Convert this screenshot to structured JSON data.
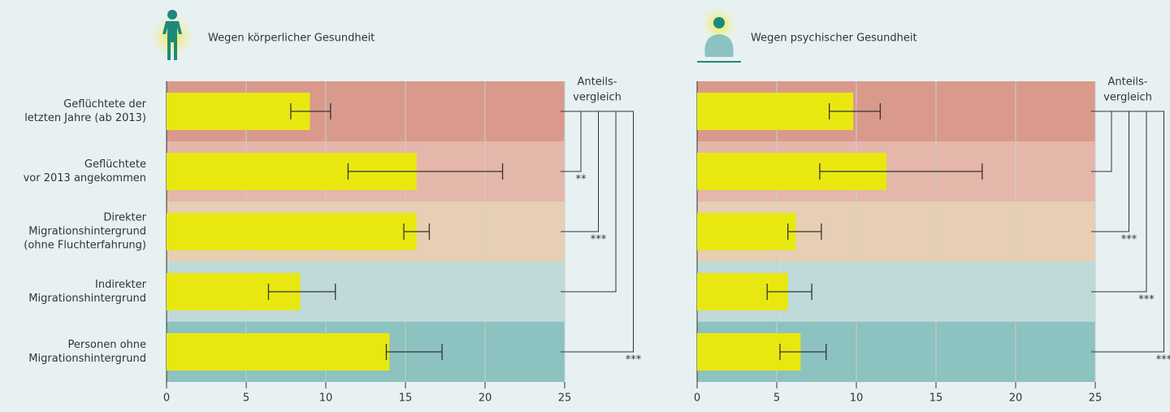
{
  "chart_data": [
    {
      "type": "bar",
      "title": "Wegen körperlicher Gesundheit",
      "categories": [
        [
          "Geflüchtete der",
          "letzten Jahre (ab 2013)"
        ],
        [
          "Geflüchtete",
          "vor 2013 angekommen"
        ],
        [
          "Direkter",
          "Migrationshintergrund",
          "(ohne Fluchterfahrung)"
        ],
        [
          "Indirekter",
          "Migrationshintergrund"
        ],
        [
          "Personen ohne",
          "Migrationshintergrund"
        ]
      ],
      "values": [
        9.0,
        15.7,
        15.7,
        8.4,
        14.0
      ],
      "error_low": [
        7.8,
        11.4,
        14.9,
        6.4,
        13.8
      ],
      "error_high": [
        10.3,
        21.1,
        16.5,
        10.6,
        17.3
      ],
      "color": "#e8e810",
      "row_colors": [
        "#d99a8c",
        "#e5b6aa",
        "#e6cfb4",
        "#bfdad9",
        "#8cc2bf"
      ],
      "xlim": [
        0,
        25
      ],
      "xticks": [
        0,
        5,
        10,
        15,
        20,
        25
      ],
      "grid": true,
      "annotation": [
        "Anteils-",
        "vergleich"
      ],
      "significance": [
        "**",
        "***",
        null,
        "***"
      ]
    },
    {
      "type": "bar",
      "title": "Wegen psychischer Gesundheit",
      "values": [
        9.8,
        11.9,
        6.2,
        5.7,
        6.5
      ],
      "error_low": [
        8.3,
        7.7,
        5.7,
        4.4,
        5.2
      ],
      "error_high": [
        11.5,
        17.9,
        7.8,
        7.2,
        8.1
      ],
      "color": "#e8e810",
      "row_colors": [
        "#d99a8c",
        "#e5b6aa",
        "#e6cfb4",
        "#bfdad9",
        "#8cc2bf"
      ],
      "xlim": [
        0,
        25
      ],
      "xticks": [
        0,
        5,
        10,
        15,
        20,
        25
      ],
      "grid": true,
      "annotation": [
        "Anteils-",
        "vergleich"
      ],
      "significance": [
        null,
        "***",
        "***",
        "***"
      ]
    }
  ]
}
